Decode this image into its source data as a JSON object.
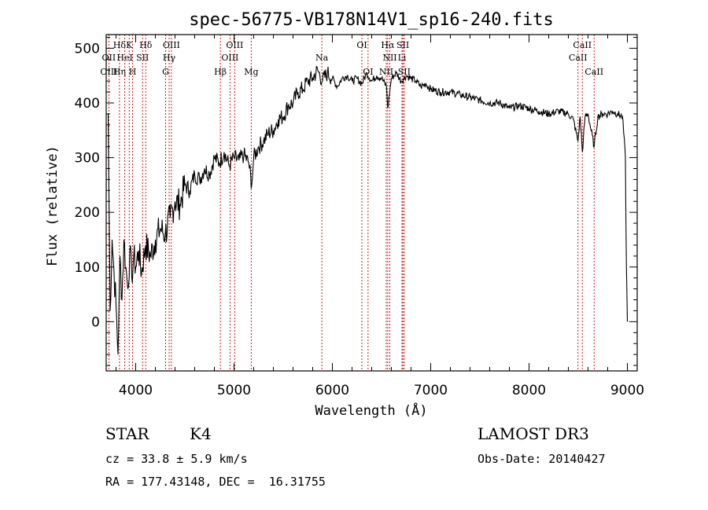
{
  "chart_data": {
    "type": "line",
    "title": "spec-56775-VB178N14V1_sp16-240.fits",
    "xlabel": "Wavelength (Å)",
    "ylabel": "Flux (relative)",
    "xlim": [
      3700,
      9100
    ],
    "ylim": [
      -90,
      525
    ],
    "xticks": [
      4000,
      5000,
      6000,
      7000,
      8000,
      9000
    ],
    "yticks": [
      0,
      100,
      200,
      300,
      400,
      500
    ],
    "series": [
      {
        "name": "flux",
        "x": [
          3720,
          3740,
          3760,
          3780,
          3800,
          3820,
          3840,
          3860,
          3880,
          3900,
          3920,
          3940,
          3960,
          3980,
          4000,
          4030,
          4060,
          4100,
          4150,
          4200,
          4250,
          4300,
          4350,
          4400,
          4450,
          4500,
          4550,
          4600,
          4650,
          4700,
          4750,
          4800,
          4850,
          4900,
          4950,
          5000,
          5050,
          5100,
          5150,
          5180,
          5200,
          5250,
          5300,
          5350,
          5400,
          5450,
          5500,
          5550,
          5600,
          5650,
          5700,
          5750,
          5800,
          5850,
          5900,
          5950,
          6000,
          6050,
          6100,
          6150,
          6200,
          6250,
          6300,
          6350,
          6400,
          6450,
          6500,
          6550,
          6563,
          6600,
          6650,
          6700,
          6750,
          6800,
          6850,
          6900,
          6950,
          7000,
          7100,
          7200,
          7300,
          7400,
          7500,
          7600,
          7700,
          7800,
          7900,
          8000,
          8100,
          8200,
          8300,
          8400,
          8450,
          8498,
          8520,
          8542,
          8570,
          8600,
          8662,
          8700,
          8750,
          8800,
          8850,
          8900,
          8950,
          8980,
          8990,
          9000
        ],
        "y": [
          380,
          20,
          150,
          90,
          30,
          -60,
          120,
          40,
          150,
          100,
          60,
          130,
          80,
          120,
          100,
          130,
          90,
          140,
          120,
          150,
          170,
          160,
          190,
          220,
          215,
          250,
          240,
          270,
          260,
          280,
          270,
          300,
          290,
          310,
          285,
          300,
          295,
          305,
          290,
          250,
          300,
          320,
          330,
          345,
          350,
          370,
          375,
          395,
          400,
          420,
          425,
          440,
          445,
          460,
          440,
          455,
          445,
          430,
          445,
          450,
          440,
          445,
          435,
          455,
          440,
          450,
          445,
          430,
          390,
          445,
          455,
          440,
          450,
          445,
          440,
          430,
          435,
          425,
          420,
          420,
          415,
          410,
          405,
          400,
          400,
          390,
          395,
          390,
          385,
          380,
          385,
          380,
          370,
          330,
          375,
          310,
          375,
          380,
          320,
          375,
          380,
          380,
          385,
          380,
          375,
          300,
          100,
          0
        ]
      }
    ],
    "spectral_lines": [
      {
        "label": "Hδ",
        "x": 3835,
        "row": 0
      },
      {
        "label": "K",
        "x": 3934,
        "row": 0
      },
      {
        "label": "Hδ",
        "x": 4102,
        "row": 0
      },
      {
        "label": "OIII",
        "x": 4363,
        "row": 0
      },
      {
        "label": "OIII",
        "x": 5007,
        "row": 0
      },
      {
        "label": "OI",
        "x": 6300,
        "row": 0
      },
      {
        "label": "Hα",
        "x": 6563,
        "row": 0
      },
      {
        "label": "SII",
        "x": 6717,
        "row": 0
      },
      {
        "label": "CaII",
        "x": 8542,
        "row": 0
      },
      {
        "label": "OII",
        "x": 3727,
        "row": 1
      },
      {
        "label": "HeI",
        "x": 3889,
        "row": 1
      },
      {
        "label": "SII",
        "x": 4070,
        "row": 1
      },
      {
        "label": "Hγ",
        "x": 4340,
        "row": 1
      },
      {
        "label": "OIII",
        "x": 4959,
        "row": 1
      },
      {
        "label": "Na",
        "x": 5893,
        "row": 1
      },
      {
        "label": "NII",
        "x": 6584,
        "row": 1
      },
      {
        "label": "Li",
        "x": 6708,
        "row": 1
      },
      {
        "label": "CaII",
        "x": 8498,
        "row": 1
      },
      {
        "label": "OIII",
        "x": 3727,
        "row": 2
      },
      {
        "label": "Hη",
        "x": 3835,
        "row": 2
      },
      {
        "label": "H",
        "x": 3968,
        "row": 2
      },
      {
        "label": "G",
        "x": 4304,
        "row": 2
      },
      {
        "label": "Hβ",
        "x": 4861,
        "row": 2
      },
      {
        "label": "Mg",
        "x": 5175,
        "row": 2
      },
      {
        "label": "OI",
        "x": 6363,
        "row": 2
      },
      {
        "label": "NII",
        "x": 6548,
        "row": 2
      },
      {
        "label": "SII",
        "x": 6731,
        "row": 2
      },
      {
        "label": "CaII",
        "x": 8662,
        "row": 2
      }
    ],
    "line_color": "#000000",
    "marker_color": "#cc0000"
  },
  "info": {
    "class": "STAR",
    "subclass": "K4",
    "survey": "LAMOST DR3",
    "cz": "cz = 33.8 ± 5.9 km/s",
    "obs_date": "Obs-Date: 20140427",
    "coords": "RA = 177.43148, DEC =  16.31755"
  }
}
